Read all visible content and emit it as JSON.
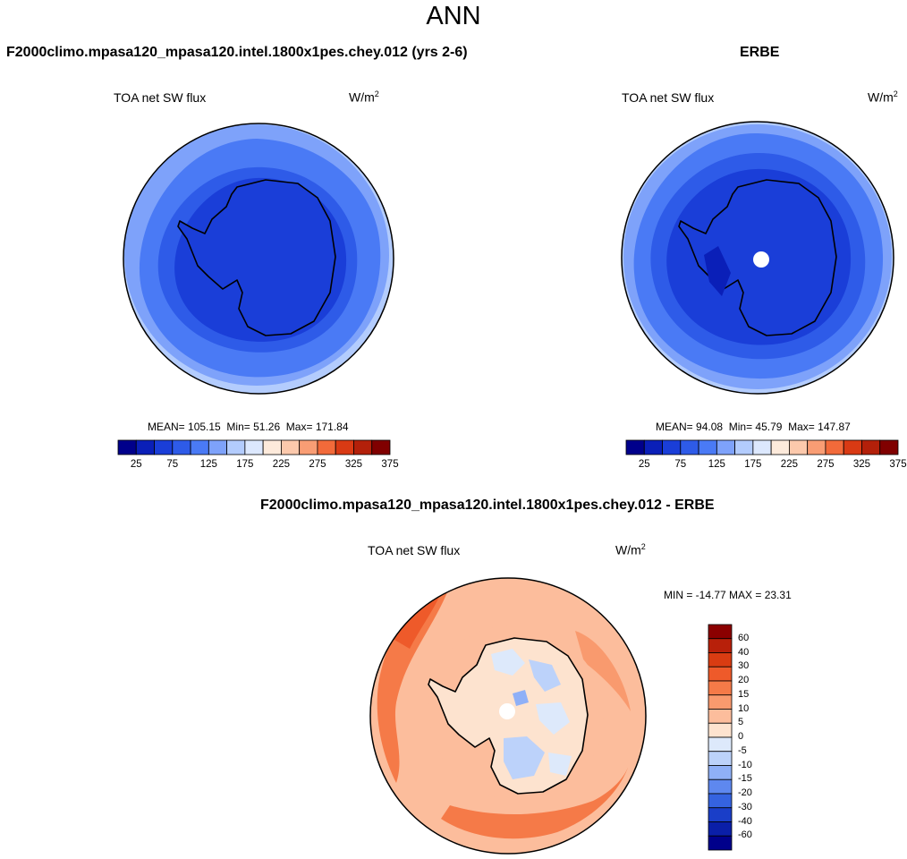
{
  "page": {
    "title": "ANN"
  },
  "panels": {
    "model": {
      "heading": "F2000climo.mpasa120_mpasa120.intel.1800x1pes.chey.012 (yrs 2-6)",
      "variable": "TOA net SW flux",
      "units_base": "W/m",
      "units_exp": "2",
      "mean_label": "MEAN=",
      "mean": "105.15",
      "min_label": "Min=",
      "min": "51.26",
      "max_label": "Max=",
      "max": "171.84"
    },
    "obs": {
      "heading": "ERBE",
      "variable": "TOA net SW flux",
      "units_base": "W/m",
      "units_exp": "2",
      "mean_label": "MEAN=",
      "mean": "94.08",
      "min_label": "Min=",
      "min": "45.79",
      "max_label": "Max=",
      "max": "147.87"
    },
    "diff": {
      "heading": "F2000climo.mpasa120_mpasa120.intel.1800x1pes.chey.012 - ERBE",
      "variable": "TOA net SW flux",
      "units_base": "W/m",
      "units_exp": "2",
      "minmax_text": "MIN = -14.77 MAX =  23.31"
    }
  },
  "chart_data": [
    {
      "type": "heatmap",
      "projection": "south-polar-stereographic",
      "title": "TOA net SW flux",
      "units": "W/m2",
      "mean": 105.15,
      "min": 51.26,
      "max": 171.84,
      "colorbar": {
        "orientation": "horizontal",
        "ticks": [
          "25",
          "75",
          "125",
          "175",
          "225",
          "275",
          "325",
          "375"
        ],
        "colors": [
          "#00008b",
          "#0a1fb8",
          "#1a3ed8",
          "#2e5be8",
          "#4a7af5",
          "#7ea2fa",
          "#b3ccfd",
          "#dce8fe",
          "#fdeadb",
          "#fcc9ac",
          "#f99d74",
          "#f26a3a",
          "#d93a14",
          "#b3200a",
          "#800000"
        ]
      }
    },
    {
      "type": "heatmap",
      "projection": "south-polar-stereographic",
      "title": "TOA net SW flux",
      "units": "W/m2",
      "mean": 94.08,
      "min": 45.79,
      "max": 147.87,
      "colorbar": {
        "orientation": "horizontal",
        "ticks": [
          "25",
          "75",
          "125",
          "175",
          "225",
          "275",
          "325",
          "375"
        ],
        "colors": [
          "#00008b",
          "#0a1fb8",
          "#1a3ed8",
          "#2e5be8",
          "#4a7af5",
          "#7ea2fa",
          "#b3ccfd",
          "#dce8fe",
          "#fdeadb",
          "#fcc9ac",
          "#f99d74",
          "#f26a3a",
          "#d93a14",
          "#b3200a",
          "#800000"
        ]
      }
    },
    {
      "type": "heatmap",
      "projection": "south-polar-stereographic",
      "title": "TOA net SW flux",
      "units": "W/m2",
      "min": -14.77,
      "max": 23.31,
      "colorbar": {
        "orientation": "vertical",
        "ticks": [
          "60",
          "40",
          "30",
          "20",
          "15",
          "10",
          "5",
          "0",
          "-5",
          "-10",
          "-15",
          "-20",
          "-30",
          "-40",
          "-60"
        ],
        "colors": [
          "#8b0000",
          "#b8200a",
          "#d93c12",
          "#ee5a2a",
          "#f57a48",
          "#f99a6e",
          "#fcbd9c",
          "#fde3cf",
          "#dde9fb",
          "#bcd2fa",
          "#8fb0f7",
          "#5e88ef",
          "#3563e0",
          "#1a3ec8",
          "#0a1fa8",
          "#00008b"
        ]
      }
    }
  ]
}
